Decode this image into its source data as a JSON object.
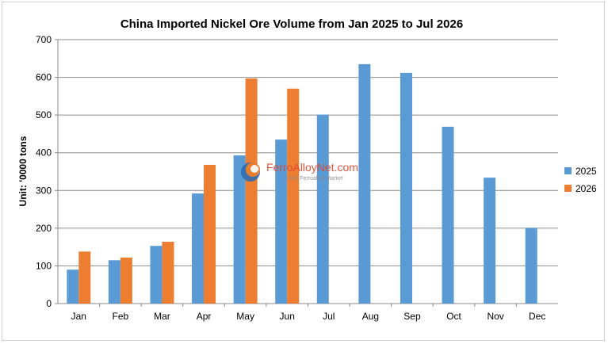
{
  "chart_data": {
    "type": "bar",
    "title": "China Imported Nickel Ore Volume from Jan 2025 to Jul 2026",
    "ylabel": "Unit: '0000 tons",
    "xlabel": "",
    "ylim": [
      0,
      700
    ],
    "yticks": [
      0,
      100,
      200,
      300,
      400,
      500,
      600,
      700
    ],
    "grid": true,
    "legend_position": "right",
    "categories": [
      "Jan",
      "Feb",
      "Mar",
      "Apr",
      "May",
      "Jun",
      "Jul",
      "Aug",
      "Sep",
      "Oct",
      "Nov",
      "Dec"
    ],
    "series": [
      {
        "name": "2025",
        "color": "#5b9bd5",
        "values": [
          90,
          115,
          153,
          292,
          393,
          435,
          501,
          635,
          612,
          469,
          334,
          201
        ]
      },
      {
        "name": "2026",
        "color": "#ed7d31",
        "values": [
          138,
          122,
          164,
          368,
          597,
          570,
          null,
          null,
          null,
          null,
          null,
          null
        ]
      }
    ]
  },
  "watermark": {
    "name": "FerroAlloyNet.com",
    "subtitle": "China Ferroalloy Market",
    "icon": "ferroalloynet-logo-icon"
  }
}
